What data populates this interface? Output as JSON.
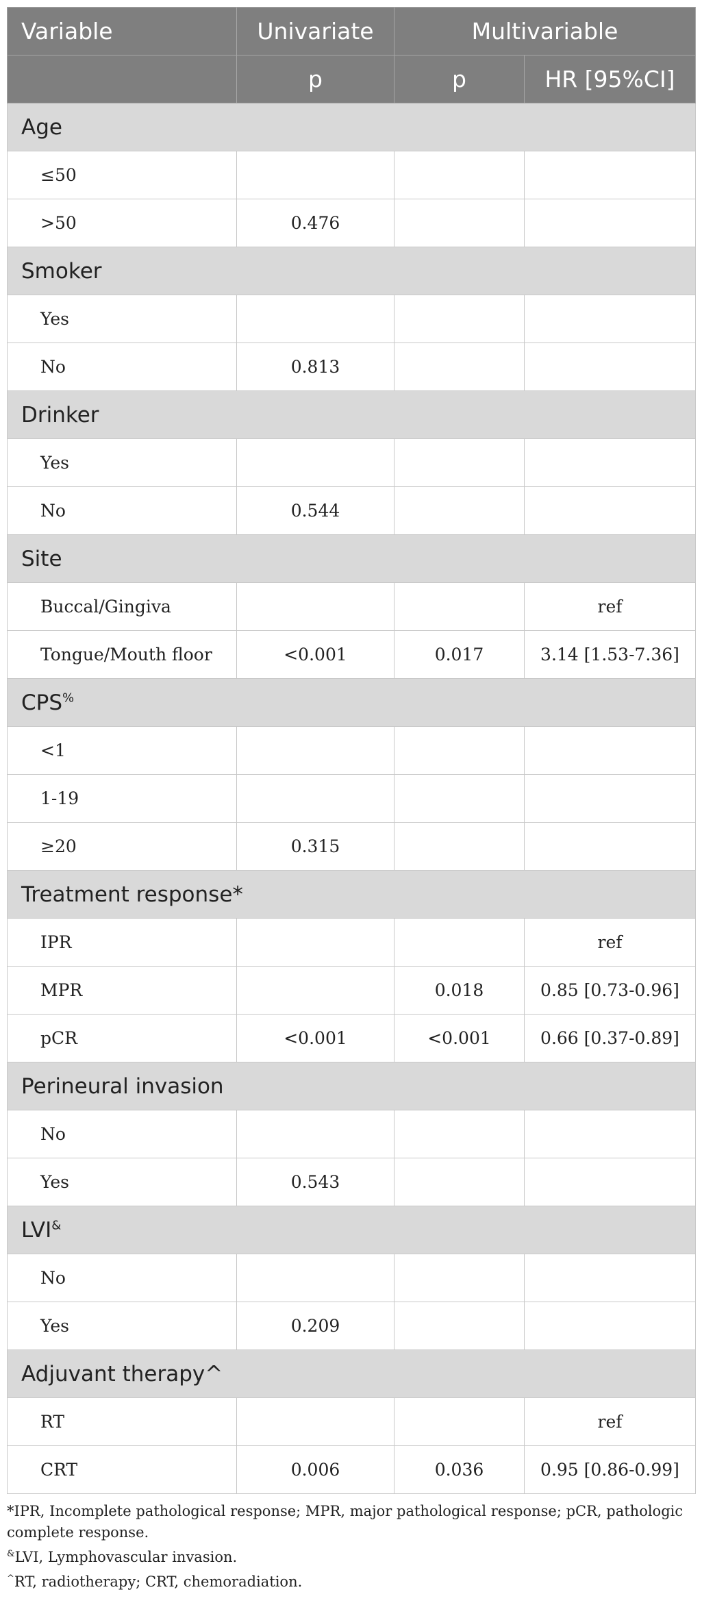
{
  "header": {
    "variable": "Variable",
    "univariate": "Univariate",
    "multivariable": "Multivariable",
    "p_uni": "p",
    "p_multi": "p",
    "hr": "HR [95%CI]"
  },
  "groups": [
    {
      "label": "Age",
      "sup": "",
      "rows": [
        {
          "label": "≤50",
          "p_uni": "",
          "p_multi": "",
          "hr": ""
        },
        {
          "label": ">50",
          "p_uni": "0.476",
          "p_multi": "",
          "hr": ""
        }
      ]
    },
    {
      "label": "Smoker",
      "sup": "",
      "rows": [
        {
          "label": "Yes",
          "p_uni": "",
          "p_multi": "",
          "hr": ""
        },
        {
          "label": "No",
          "p_uni": "0.813",
          "p_multi": "",
          "hr": ""
        }
      ]
    },
    {
      "label": "Drinker",
      "sup": "",
      "rows": [
        {
          "label": "Yes",
          "p_uni": "",
          "p_multi": "",
          "hr": ""
        },
        {
          "label": "No",
          "p_uni": "0.544",
          "p_multi": "",
          "hr": ""
        }
      ]
    },
    {
      "label": "Site",
      "sup": "",
      "rows": [
        {
          "label": "Buccal/Gingiva",
          "p_uni": "",
          "p_multi": "",
          "hr": "ref"
        },
        {
          "label": "Tongue/Mouth floor",
          "p_uni": "<0.001",
          "p_multi": "0.017",
          "hr": "3.14 [1.53-7.36]"
        }
      ]
    },
    {
      "label": "CPS",
      "sup": "%",
      "rows": [
        {
          "label": "<1",
          "p_uni": "",
          "p_multi": "",
          "hr": ""
        },
        {
          "label": "1-19",
          "p_uni": "",
          "p_multi": "",
          "hr": ""
        },
        {
          "label": "≥20",
          "p_uni": "0.315",
          "p_multi": "",
          "hr": ""
        }
      ]
    },
    {
      "label": "Treatment response*",
      "sup": "",
      "rows": [
        {
          "label": "IPR",
          "p_uni": "",
          "p_multi": "",
          "hr": "ref"
        },
        {
          "label": "MPR",
          "p_uni": "",
          "p_multi": "0.018",
          "hr": "0.85 [0.73-0.96]"
        },
        {
          "label": "pCR",
          "p_uni": "<0.001",
          "p_multi": "<0.001",
          "hr": "0.66 [0.37-0.89]"
        }
      ]
    },
    {
      "label": "Perineural invasion",
      "sup": "",
      "rows": [
        {
          "label": "No",
          "p_uni": "",
          "p_multi": "",
          "hr": ""
        },
        {
          "label": "Yes",
          "p_uni": "0.543",
          "p_multi": "",
          "hr": ""
        }
      ]
    },
    {
      "label": "LVI",
      "sup": "&",
      "rows": [
        {
          "label": "No",
          "p_uni": "",
          "p_multi": "",
          "hr": ""
        },
        {
          "label": "Yes",
          "p_uni": "0.209",
          "p_multi": "",
          "hr": ""
        }
      ]
    },
    {
      "label": "Adjuvant therapy^",
      "sup": "",
      "rows": [
        {
          "label": "RT",
          "p_uni": "",
          "p_multi": "",
          "hr": "ref"
        },
        {
          "label": "CRT",
          "p_uni": "0.006",
          "p_multi": "0.036",
          "hr": "0.95 [0.86-0.99]"
        }
      ]
    }
  ],
  "footnotes": [
    {
      "mark": "",
      "text": "*IPR, Incomplete pathological response; MPR, major pathological response; pCR, pathologic complete response."
    },
    {
      "mark": "&",
      "text": "LVI, Lymphovascular invasion."
    },
    {
      "mark": "^",
      "text": "RT, radiotherapy; CRT, chemoradiation."
    }
  ]
}
